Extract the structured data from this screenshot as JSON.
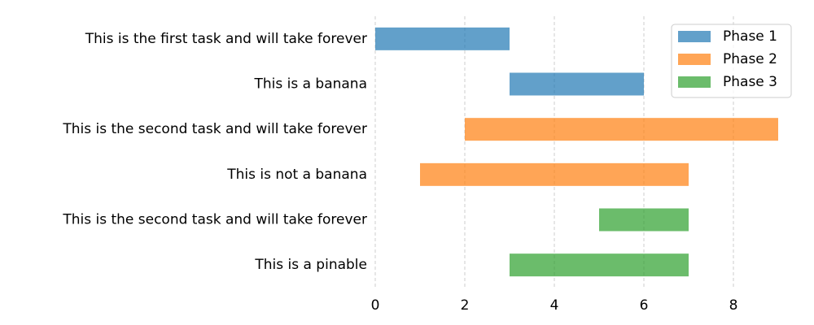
{
  "chart_data": {
    "type": "gantt",
    "categories": [
      "This is the first task and will take forever",
      "This is a banana",
      "This is the second task and will take forever",
      "This is not a banana",
      "This is the second task and will take forever",
      "This is a pinable"
    ],
    "series": [
      {
        "name": "Phase 1",
        "color": "#1f77b4",
        "start": [
          0,
          3,
          null,
          null,
          null,
          null
        ],
        "end": [
          3,
          6,
          null,
          null,
          null,
          null
        ]
      },
      {
        "name": "Phase 2",
        "color": "#ff7f0e",
        "start": [
          null,
          null,
          2,
          1,
          null,
          null
        ],
        "end": [
          null,
          null,
          9,
          7,
          null,
          null
        ]
      },
      {
        "name": "Phase 3",
        "color": "#2ca02c",
        "start": [
          null,
          null,
          null,
          null,
          5,
          3
        ],
        "end": [
          null,
          null,
          null,
          null,
          7,
          7
        ]
      }
    ],
    "xlim": [
      0,
      9.2
    ],
    "xticks": [
      0,
      2,
      4,
      6,
      8
    ],
    "grid": true,
    "legend": "upper right"
  }
}
